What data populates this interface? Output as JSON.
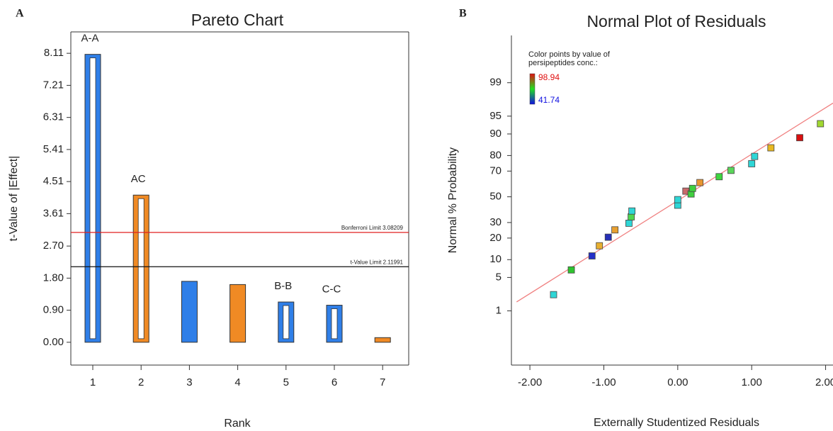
{
  "chart_data": [
    {
      "type": "bar",
      "panel": "A",
      "title": "Pareto Chart",
      "x_label": "Rank",
      "y_label": "t-Value of |Effect|",
      "categories": [
        "1",
        "2",
        "3",
        "4",
        "5",
        "6",
        "7"
      ],
      "values": [
        8.08,
        4.13,
        1.71,
        1.62,
        1.13,
        1.04,
        0.13
      ],
      "bar_labels": [
        "A-A",
        "AC",
        null,
        null,
        "B-B",
        "C-C",
        null
      ],
      "colors": [
        "#2f7fe8",
        "#f08a24",
        "#2f7fe8",
        "#f08a24",
        "#2f7fe8",
        "#2f7fe8",
        "#f08a24"
      ],
      "hollow": [
        true,
        true,
        false,
        false,
        true,
        true,
        false
      ],
      "ylim": [
        -0.64,
        8.71
      ],
      "yticks": [
        {
          "value": 0,
          "label": "0.00"
        },
        {
          "value": 0.9,
          "label": "0.90"
        },
        {
          "value": 1.8,
          "label": "1.80"
        },
        {
          "value": 2.7,
          "label": "2.70"
        },
        3.61,
        4.51,
        5.41,
        6.31,
        7.21,
        8.11
      ],
      "reference_lines": [
        {
          "value": 3.08209,
          "label": "Bonferroni Limit 3.08209",
          "color": "#e02020"
        },
        {
          "value": 2.11991,
          "label": "t-Value Limit 2.11991",
          "color": "#111111"
        }
      ]
    },
    {
      "type": "scatter",
      "panel": "B",
      "title": "Normal Plot of Residuals",
      "x_label": "Externally Studentized Residuals",
      "y_label": "Normal % Probability",
      "x": [
        -1.68,
        -1.44,
        -1.16,
        -1.06,
        -0.94,
        -0.85,
        -0.66,
        -0.63,
        -0.62,
        0.0,
        0.0,
        0.11,
        0.18,
        0.2,
        0.3,
        0.56,
        0.72,
        1.0,
        1.04,
        1.26,
        1.65,
        1.93
      ],
      "y": [
        2.3,
        6.8,
        11.4,
        15.9,
        20.5,
        25,
        29.5,
        34.1,
        38.6,
        43.2,
        47.7,
        54.6,
        52.3,
        56.8,
        61.4,
        65.9,
        70.5,
        75,
        79.5,
        84.1,
        88.6,
        93.2
      ],
      "colors": [
        "#2fd6d6",
        "#2fc42f",
        "#2630c8",
        "#e8b030",
        "#2630b8",
        "#e8a030",
        "#2fd6d6",
        "#4fd64f",
        "#2fd6d6",
        "#2fd6d6",
        "#2fd6d6",
        "#c86a6a",
        "#3fcf3f",
        "#3fcf3f",
        "#e89530",
        "#3fd63f",
        "#5ad65a",
        "#2fd6d6",
        "#2fd6d6",
        "#e8b820",
        "#d81010",
        "#a0d830"
      ],
      "y_scale": "probit",
      "xlim": [
        -2.25,
        2.1
      ],
      "xticks": [
        {
          "value": -2,
          "label": "-2.00"
        },
        {
          "value": -1,
          "label": "-1.00"
        },
        {
          "value": 0,
          "label": "0.00"
        },
        {
          "value": 1,
          "label": "1.00"
        },
        {
          "value": 2,
          "label": "2.00"
        }
      ],
      "ylim": [
        0.03,
        99.95
      ],
      "yticks": [
        1,
        5,
        10,
        20,
        30,
        50,
        70,
        80,
        90,
        95,
        99
      ],
      "fit_line": {
        "x": [
          -2.18,
          2.1
        ],
        "y": [
          1.6,
          97.2
        ],
        "color": "#f08080"
      },
      "color_scale": {
        "title": [
          "Color points by value of",
          "persipeptides conc.:"
        ],
        "max": 98.94,
        "min": 41.74,
        "colors": [
          "#e01010",
          "#20e020",
          "#1010e0"
        ]
      }
    }
  ]
}
